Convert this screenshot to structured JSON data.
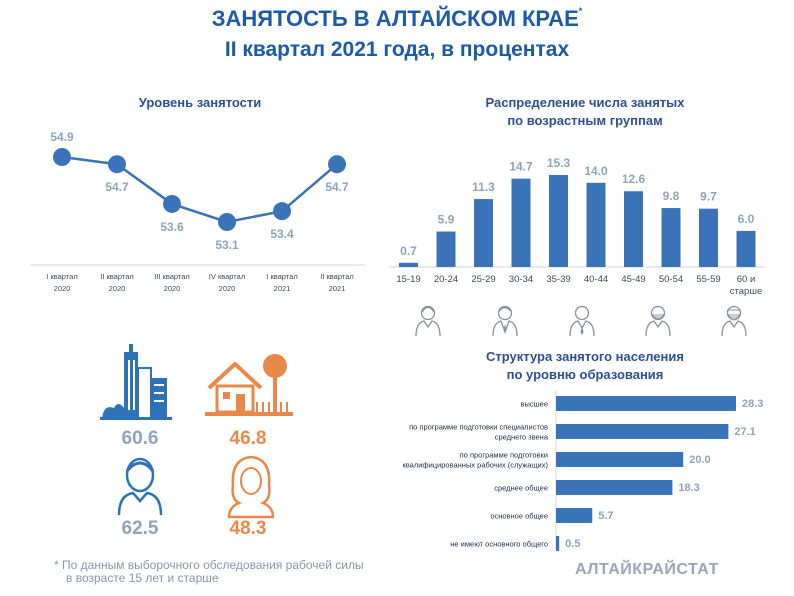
{
  "header": {
    "title": "ЗАНЯТОСТЬ В АЛТАЙСКОМ КРАЕ",
    "title_mark": "*",
    "subtitle": "II квартал 2021 года, в процентах"
  },
  "employment_level": {
    "title": "Уровень занятости"
  },
  "age_distribution": {
    "title_line1": "Распределение числа занятых",
    "title_line2": "по возрастным группам"
  },
  "education_structure": {
    "title_line1": "Структура занятого населения",
    "title_line2": "по уровню образования"
  },
  "stats": {
    "urban": "60.6",
    "rural": "46.8",
    "men": "62.5",
    "women": "48.3"
  },
  "colors": {
    "primary": "#3b73b9",
    "title": "#1f5aa6",
    "orange": "#e8894c",
    "grey_blue": "#8fa3bd",
    "icon_blue": "#2e73b8"
  },
  "footer": {
    "note_line1": "* По данным выборочного обследования рабочей силы",
    "note_line2": "в возрасте 15 лет и старше",
    "brand": "АЛТАЙКРАЙСТАТ"
  },
  "chart_data": [
    {
      "type": "line",
      "title": "Уровень занятости",
      "categories": [
        [
          "I квартал",
          "2020"
        ],
        [
          "II квартал",
          "2020"
        ],
        [
          "III квартал",
          "2020"
        ],
        [
          "IV квартал",
          "2020"
        ],
        [
          "I квартал",
          "2021"
        ],
        [
          "II квартал",
          "2021"
        ]
      ],
      "values": [
        54.9,
        54.7,
        53.6,
        53.1,
        53.4,
        54.7
      ],
      "labels": [
        "54.9",
        "54.7",
        "53.6",
        "53.1",
        "53.4",
        "54.7"
      ],
      "ylim": [
        52.6,
        55.3
      ]
    },
    {
      "type": "bar",
      "title": "Распределение числа занятых по возрастным группам",
      "categories": [
        [
          "15-19"
        ],
        [
          "20-24"
        ],
        [
          "25-29"
        ],
        [
          "30-34"
        ],
        [
          "35-39"
        ],
        [
          "40-44"
        ],
        [
          "45-49"
        ],
        [
          "50-54"
        ],
        [
          "55-59"
        ],
        [
          "60 и",
          "старше"
        ]
      ],
      "values": [
        0.7,
        5.9,
        11.3,
        14.7,
        15.3,
        14.0,
        12.6,
        9.8,
        9.7,
        6.0
      ],
      "labels": [
        "0.7",
        "5.9",
        "11.3",
        "14.7",
        "15.3",
        "14.0",
        "12.6",
        "9.8",
        "9.7",
        "6.0"
      ],
      "ylim": [
        0,
        15.3
      ]
    },
    {
      "type": "bar",
      "orientation": "horizontal",
      "title": "Структура занятого населения по уровню образования",
      "categories": [
        [
          "высшее"
        ],
        [
          "по программе подготовки специалистов",
          "среднего звена"
        ],
        [
          "по программе подготовки",
          "квалифицированных рабочих (служащих)"
        ],
        [
          "среднее общее"
        ],
        [
          "основное общее"
        ],
        [
          "не имеют основного общего"
        ]
      ],
      "values": [
        28.3,
        27.1,
        20.0,
        18.3,
        5.7,
        0.5
      ],
      "labels": [
        "28.3",
        "27.1",
        "20.0",
        "18.3",
        "5.7",
        "0.5"
      ],
      "xlim": [
        0,
        28.3
      ]
    }
  ]
}
